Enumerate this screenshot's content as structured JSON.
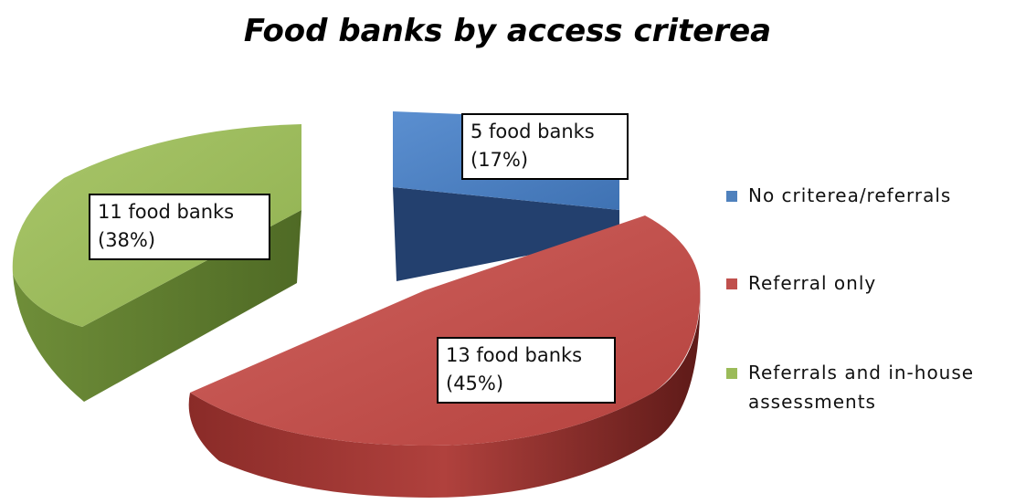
{
  "chart_data": {
    "type": "pie",
    "title": "Food banks by access criterea",
    "slices": [
      {
        "name": "No criterea/referrals",
        "value": 5,
        "percent": 17,
        "label_line1": "5 food banks",
        "label_line2": "(17%)",
        "color_top": "#4a7ebf",
        "color_side": "#23406e",
        "legend_color": "#4f81bd"
      },
      {
        "name": "Referral only",
        "value": 13,
        "percent": 45,
        "label_line1": "13 food banks",
        "label_line2": "(45%)",
        "color_top": "#c0504d",
        "color_side": "#7a2422",
        "legend_color": "#c0504d"
      },
      {
        "name": "Referrals and in-house assessments",
        "value": 11,
        "percent": 38,
        "label_line1": "11 food banks",
        "label_line2": "(38%)",
        "color_top": "#9bbb59",
        "color_side": "#5d7a2e",
        "legend_color": "#9bbb59"
      }
    ],
    "legend_placement": "right",
    "style": "3d exploded"
  }
}
